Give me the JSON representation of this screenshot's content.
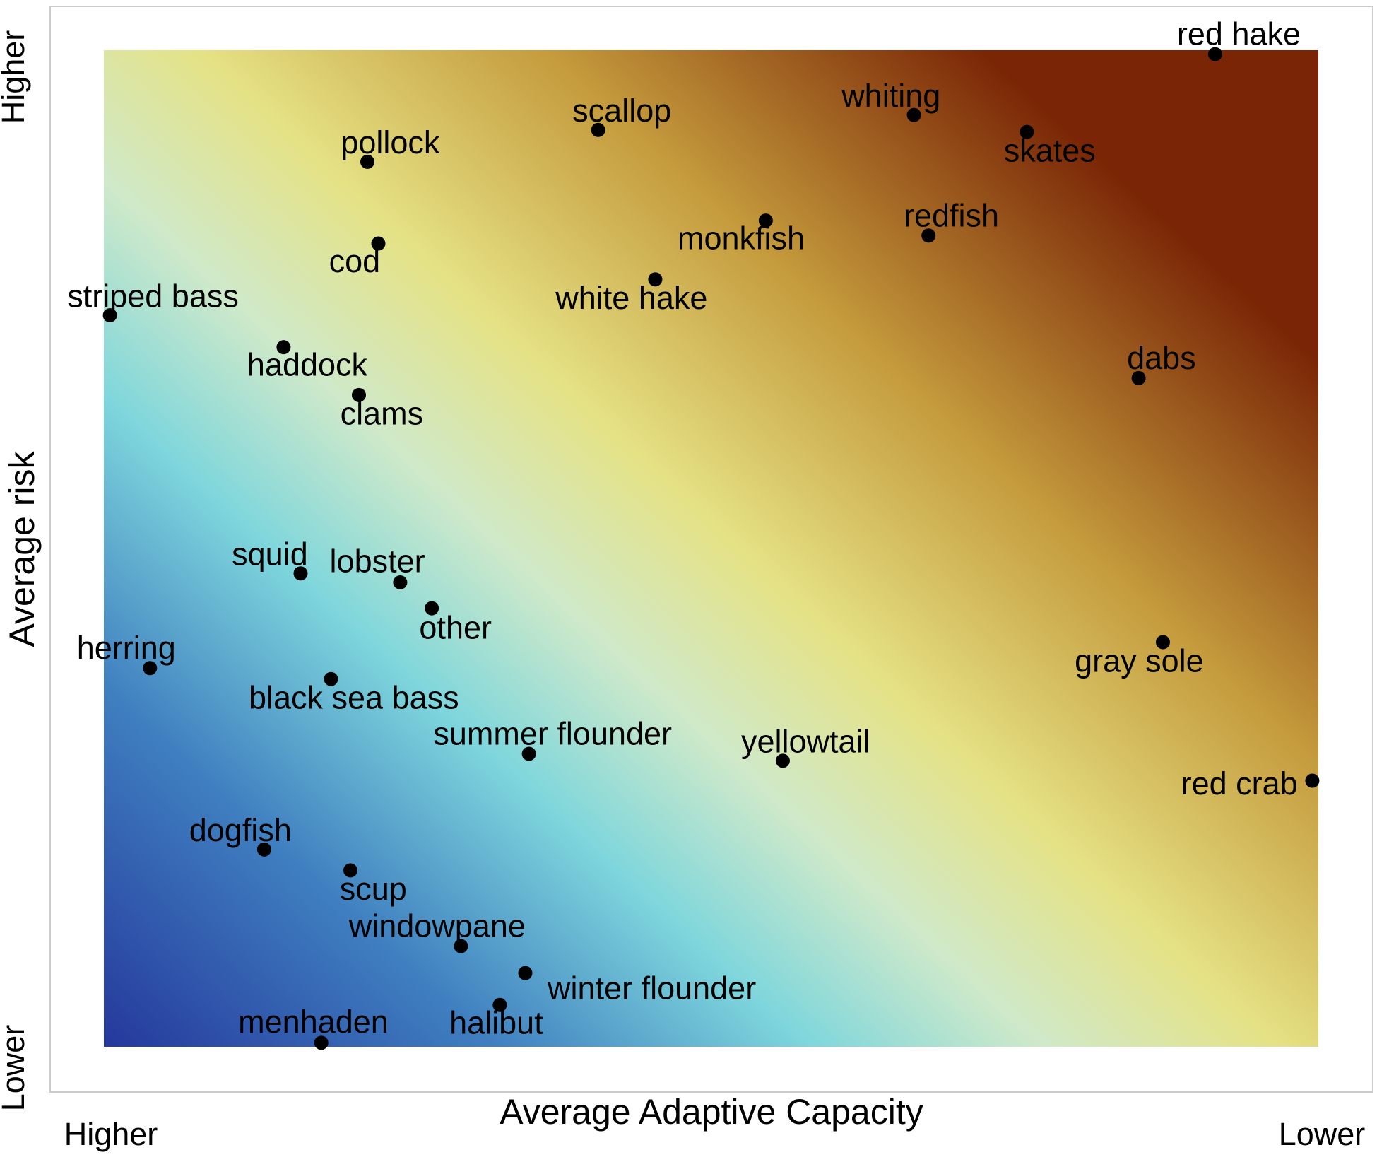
{
  "chart_data": {
    "type": "scatter",
    "x_label": "Average Adaptive Capacity",
    "y_label": "Average risk",
    "x_end_labels": [
      "Higher",
      "Lower"
    ],
    "y_end_labels": [
      "Lower",
      "Higher"
    ],
    "xlim": [
      0,
      100
    ],
    "ylim": [
      0,
      100
    ],
    "color": "#000000",
    "labels": [
      "red hake",
      "whiting",
      "scallop",
      "skates",
      "pollock",
      "monkfish",
      "redfish",
      "cod",
      "white hake",
      "striped bass",
      "haddock",
      "dabs",
      "clams",
      "squid",
      "lobster",
      "other",
      "gray sole",
      "herring",
      "black sea bass",
      "summer flounder",
      "yellowtail",
      "red crab",
      "dogfish",
      "scup",
      "windowpane",
      "winter flounder",
      "halibut",
      "menhaden"
    ],
    "x": [
      91.5,
      66.7,
      40.7,
      76.0,
      21.7,
      54.5,
      67.9,
      22.6,
      45.4,
      0.5,
      14.8,
      85.2,
      21.0,
      16.2,
      24.4,
      27.0,
      87.2,
      3.8,
      18.7,
      35.0,
      55.9,
      99.5,
      13.2,
      20.3,
      29.4,
      34.7,
      32.6,
      17.9
    ],
    "values": [
      99.6,
      93.5,
      92.0,
      91.8,
      88.8,
      82.9,
      81.4,
      80.6,
      77.0,
      73.4,
      70.2,
      67.1,
      65.4,
      47.5,
      46.6,
      44.0,
      40.6,
      38.0,
      36.9,
      29.4,
      28.7,
      26.7,
      19.8,
      17.7,
      10.1,
      7.4,
      4.2,
      0.4
    ]
  }
}
